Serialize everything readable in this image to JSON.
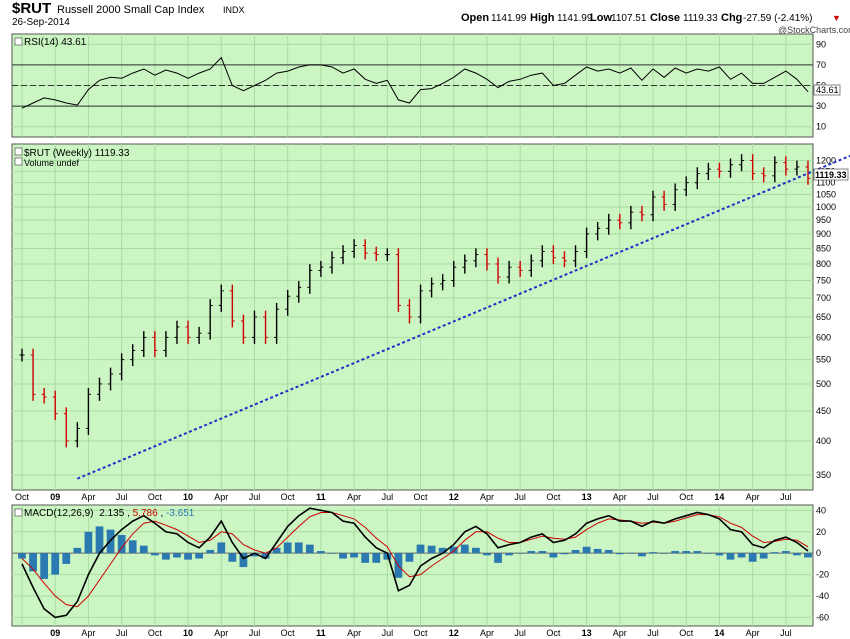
{
  "header": {
    "symbol": "$RUT",
    "name": "Russell 2000 Small Cap Index",
    "exchange": "INDX",
    "date": "26-Sep-2014",
    "open_label": "Open",
    "open": "1141.99",
    "high_label": "High",
    "high": "1141.99",
    "low_label": "Low",
    "low": "1107.51",
    "close_label": "Close",
    "close": "1119.33",
    "chg_label": "Chg",
    "chg": "-27.59 (-2.41%)",
    "chg_arrow": "▼",
    "copyright": "@StockCharts.com"
  },
  "colors": {
    "panel_bg": "#ccf5c4",
    "grid": "#a8dca0",
    "up": "#000000",
    "down": "#cc0000",
    "trend": "#1f2fc8",
    "macd_line": "#000000",
    "signal_line": "#cc0000",
    "histogram": "#2a79b0"
  },
  "chart_data": [
    {
      "type": "line",
      "panel": "RSI",
      "label": "RSI(14) 43.61",
      "current": "43.61",
      "ylim": [
        0,
        100
      ],
      "y_ticks": [
        10,
        30,
        50,
        70,
        90
      ],
      "reference_lines": [
        30,
        50,
        70
      ],
      "x": [
        "2008-10",
        "2008-11",
        "2008-12",
        "2009-01",
        "2009-02",
        "2009-03",
        "2009-04",
        "2009-05",
        "2009-06",
        "2009-07",
        "2009-08",
        "2009-09",
        "2009-10",
        "2009-11",
        "2009-12",
        "2010-01",
        "2010-02",
        "2010-03",
        "2010-04",
        "2010-05",
        "2010-06",
        "2010-07",
        "2010-08",
        "2010-09",
        "2010-10",
        "2010-11",
        "2010-12",
        "2011-01",
        "2011-02",
        "2011-03",
        "2011-04",
        "2011-05",
        "2011-06",
        "2011-07",
        "2011-08",
        "2011-09",
        "2011-10",
        "2011-11",
        "2011-12",
        "2012-01",
        "2012-02",
        "2012-03",
        "2012-04",
        "2012-05",
        "2012-06",
        "2012-07",
        "2012-08",
        "2012-09",
        "2012-10",
        "2012-11",
        "2012-12",
        "2013-01",
        "2013-02",
        "2013-03",
        "2013-04",
        "2013-05",
        "2013-06",
        "2013-07",
        "2013-08",
        "2013-09",
        "2013-10",
        "2013-11",
        "2013-12",
        "2014-01",
        "2014-02",
        "2014-03",
        "2014-04",
        "2014-05",
        "2014-06",
        "2014-07",
        "2014-08",
        "2014-09"
      ],
      "values": [
        28,
        33,
        38,
        36,
        33,
        31,
        46,
        55,
        58,
        57,
        62,
        66,
        60,
        65,
        62,
        57,
        62,
        66,
        77,
        50,
        45,
        50,
        55,
        62,
        64,
        68,
        70,
        70,
        68,
        62,
        66,
        56,
        52,
        55,
        36,
        33,
        46,
        47,
        52,
        58,
        66,
        62,
        56,
        48,
        54,
        56,
        60,
        62,
        50,
        52,
        60,
        68,
        64,
        66,
        62,
        67,
        55,
        66,
        58,
        67,
        62,
        66,
        64,
        68,
        56,
        62,
        52,
        52,
        58,
        64,
        56,
        44
      ]
    },
    {
      "type": "line",
      "panel": "price",
      "label": "$RUT (Weekly) 1119.33",
      "volume_label": "Volume undef",
      "last_value_label": "1119.33",
      "scale": "log",
      "ylim": [
        330,
        1280
      ],
      "y_ticks": [
        350,
        400,
        450,
        500,
        550,
        600,
        650,
        700,
        750,
        800,
        850,
        900,
        950,
        1000,
        1050,
        1100,
        1150,
        1200
      ],
      "x_ticks": [
        "Oct",
        "09",
        "Apr",
        "Jul",
        "Oct",
        "10",
        "Apr",
        "Jul",
        "Oct",
        "11",
        "Apr",
        "Jul",
        "Oct",
        "12",
        "Apr",
        "Jul",
        "Oct",
        "13",
        "Apr",
        "Jul",
        "Oct",
        "14",
        "Apr",
        "Jul"
      ],
      "x": [
        "2008-10",
        "2008-11",
        "2008-12",
        "2009-01",
        "2009-02",
        "2009-03",
        "2009-04",
        "2009-05",
        "2009-06",
        "2009-07",
        "2009-08",
        "2009-09",
        "2009-10",
        "2009-11",
        "2009-12",
        "2010-01",
        "2010-02",
        "2010-03",
        "2010-04",
        "2010-05",
        "2010-06",
        "2010-07",
        "2010-08",
        "2010-09",
        "2010-10",
        "2010-11",
        "2010-12",
        "2011-01",
        "2011-02",
        "2011-03",
        "2011-04",
        "2011-05",
        "2011-06",
        "2011-07",
        "2011-08",
        "2011-09",
        "2011-10",
        "2011-11",
        "2011-12",
        "2012-01",
        "2012-02",
        "2012-03",
        "2012-04",
        "2012-05",
        "2012-06",
        "2012-07",
        "2012-08",
        "2012-09",
        "2012-10",
        "2012-11",
        "2012-12",
        "2013-01",
        "2013-02",
        "2013-03",
        "2013-04",
        "2013-05",
        "2013-06",
        "2013-07",
        "2013-08",
        "2013-09",
        "2013-10",
        "2013-11",
        "2013-12",
        "2014-01",
        "2014-02",
        "2014-03",
        "2014-04",
        "2014-05",
        "2014-06",
        "2014-07",
        "2014-08",
        "2014-09"
      ],
      "values": [
        560,
        480,
        475,
        445,
        400,
        420,
        480,
        500,
        520,
        550,
        570,
        600,
        570,
        600,
        625,
        600,
        610,
        680,
        720,
        640,
        600,
        650,
        600,
        670,
        705,
        730,
        780,
        790,
        820,
        840,
        860,
        835,
        830,
        830,
        680,
        650,
        720,
        740,
        750,
        790,
        810,
        830,
        800,
        760,
        790,
        780,
        810,
        840,
        820,
        810,
        840,
        900,
        920,
        950,
        940,
        980,
        970,
        1040,
        1010,
        1070,
        1100,
        1140,
        1160,
        1150,
        1180,
        1200,
        1140,
        1130,
        1190,
        1160,
        1170,
        1119
      ]
    },
    {
      "type": "line",
      "panel": "MACD",
      "label": "MACD(12,26,9) 2.135, 5.786, -3.651",
      "macd_label": "MACD(12,26,9)",
      "macd_value": "2.135",
      "signal_value": "5.786",
      "hist_value": "-3.651",
      "ylim": [
        -68,
        45
      ],
      "y_ticks": [
        -60,
        -40,
        -20,
        0,
        20,
        40
      ],
      "x_ticks": [
        "09",
        "Apr",
        "Jul",
        "Oct",
        "10",
        "Apr",
        "Jul",
        "Oct",
        "11",
        "Apr",
        "Jul",
        "Oct",
        "12",
        "Apr",
        "Jul",
        "Oct",
        "13",
        "Apr",
        "Jul",
        "Oct",
        "14",
        "Apr",
        "Jul"
      ],
      "x": [
        "2008-10",
        "2008-11",
        "2008-12",
        "2009-01",
        "2009-02",
        "2009-03",
        "2009-04",
        "2009-05",
        "2009-06",
        "2009-07",
        "2009-08",
        "2009-09",
        "2009-10",
        "2009-11",
        "2009-12",
        "2010-01",
        "2010-02",
        "2010-03",
        "2010-04",
        "2010-05",
        "2010-06",
        "2010-07",
        "2010-08",
        "2010-09",
        "2010-10",
        "2010-11",
        "2010-12",
        "2011-01",
        "2011-02",
        "2011-03",
        "2011-04",
        "2011-05",
        "2011-06",
        "2011-07",
        "2011-08",
        "2011-09",
        "2011-10",
        "2011-11",
        "2011-12",
        "2012-01",
        "2012-02",
        "2012-03",
        "2012-04",
        "2012-05",
        "2012-06",
        "2012-07",
        "2012-08",
        "2012-09",
        "2012-10",
        "2012-11",
        "2012-12",
        "2013-01",
        "2013-02",
        "2013-03",
        "2013-04",
        "2013-05",
        "2013-06",
        "2013-07",
        "2013-08",
        "2013-09",
        "2013-10",
        "2013-11",
        "2013-12",
        "2014-01",
        "2014-02",
        "2014-03",
        "2014-04",
        "2014-05",
        "2014-06",
        "2014-07",
        "2014-08",
        "2014-09"
      ],
      "series": [
        {
          "name": "MACD",
          "values": [
            -10,
            -32,
            -52,
            -60,
            -58,
            -45,
            -20,
            0,
            12,
            22,
            30,
            35,
            28,
            20,
            18,
            10,
            5,
            15,
            30,
            10,
            -5,
            0,
            -5,
            10,
            25,
            35,
            42,
            40,
            38,
            30,
            28,
            15,
            5,
            0,
            -35,
            -30,
            -12,
            -5,
            0,
            8,
            20,
            25,
            18,
            5,
            8,
            10,
            15,
            18,
            10,
            12,
            18,
            28,
            32,
            35,
            30,
            30,
            25,
            30,
            28,
            32,
            35,
            38,
            36,
            32,
            22,
            20,
            8,
            5,
            12,
            15,
            10,
            2
          ]
        },
        {
          "name": "Signal",
          "values": [
            -5,
            -15,
            -28,
            -40,
            -48,
            -50,
            -40,
            -25,
            -10,
            5,
            18,
            28,
            30,
            26,
            22,
            16,
            10,
            12,
            20,
            18,
            8,
            3,
            0,
            5,
            15,
            25,
            34,
            38,
            38,
            35,
            32,
            24,
            14,
            6,
            -12,
            -22,
            -20,
            -12,
            -5,
            2,
            12,
            20,
            20,
            14,
            10,
            10,
            13,
            16,
            14,
            13,
            15,
            22,
            28,
            32,
            31,
            30,
            28,
            29,
            28,
            30,
            33,
            36,
            36,
            34,
            28,
            24,
            16,
            10,
            11,
            13,
            12,
            6
          ]
        }
      ]
    }
  ]
}
